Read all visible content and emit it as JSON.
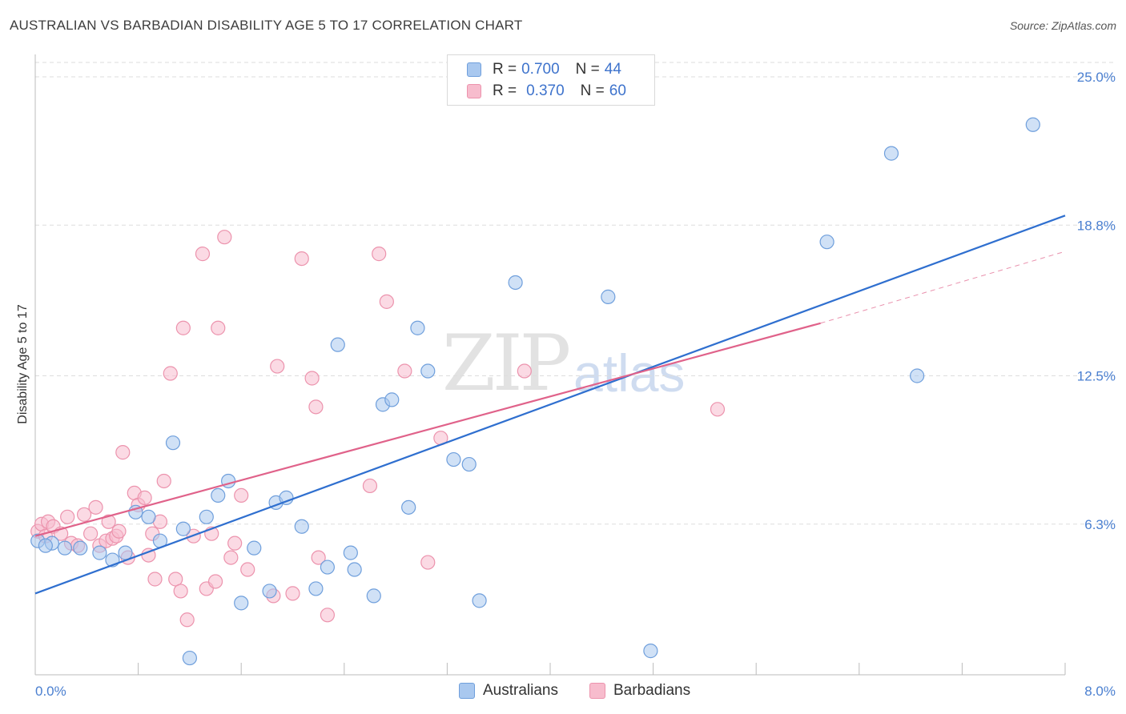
{
  "title": "AUSTRALIAN VS BARBADIAN DISABILITY AGE 5 TO 17 CORRELATION CHART",
  "source": "Source: ZipAtlas.com",
  "watermark": {
    "zip": "ZIP",
    "atlas": "atlas"
  },
  "legend": {
    "australians": {
      "r_label": "R =",
      "r_value": "0.700",
      "n_label": "N =",
      "n_value": "44"
    },
    "barbadians": {
      "r_label": "R =",
      "r_value": "0.370",
      "n_label": "N =",
      "n_value": "60"
    }
  },
  "bottom_legend": {
    "australians": "Australians",
    "barbadians": "Barbadians"
  },
  "colors": {
    "australians_fill": "#a9c8ef",
    "australians_stroke": "#6f9fdc",
    "australians_line": "#2f6fcf",
    "barbadians_fill": "#f7bccd",
    "barbadians_stroke": "#ec93ad",
    "barbadians_line": "#e0628a",
    "tick_text": "#4a7fd0",
    "grid": "#dddddd"
  },
  "chart_data": {
    "type": "scatter",
    "title": "AUSTRALIAN VS BARBADIAN DISABILITY AGE 5 TO 17 CORRELATION CHART",
    "xlabel": "",
    "ylabel": "Disability Age 5 to 17",
    "xlim": [
      0.0,
      8.0
    ],
    "ylim": [
      0.0,
      25.0
    ],
    "x_tick_labels": [
      "0.0%",
      "8.0%"
    ],
    "y_ticks": [
      6.3,
      12.5,
      18.8,
      25.0
    ],
    "y_tick_labels": [
      "6.3%",
      "12.5%",
      "18.8%",
      "25.0%"
    ],
    "grid": "horizontal dashed",
    "legend_position": "top-center",
    "series": [
      {
        "name": "Australians",
        "r": 0.7,
        "n": 44,
        "trend": {
          "x": [
            0.0,
            8.0
          ],
          "y": [
            3.4,
            19.2
          ]
        },
        "points": [
          [
            0.02,
            5.6
          ],
          [
            0.13,
            5.5
          ],
          [
            0.23,
            5.3
          ],
          [
            0.35,
            5.3
          ],
          [
            0.5,
            5.1
          ],
          [
            0.6,
            4.8
          ],
          [
            0.7,
            5.1
          ],
          [
            0.78,
            6.8
          ],
          [
            0.88,
            6.6
          ],
          [
            0.97,
            5.6
          ],
          [
            1.07,
            9.7
          ],
          [
            1.15,
            6.1
          ],
          [
            1.2,
            0.7
          ],
          [
            1.33,
            6.6
          ],
          [
            1.42,
            7.5
          ],
          [
            1.5,
            8.1
          ],
          [
            1.6,
            3.0
          ],
          [
            1.7,
            5.3
          ],
          [
            1.82,
            3.5
          ],
          [
            1.87,
            7.2
          ],
          [
            1.95,
            7.4
          ],
          [
            2.07,
            6.2
          ],
          [
            2.18,
            3.6
          ],
          [
            2.27,
            4.5
          ],
          [
            2.35,
            13.8
          ],
          [
            2.45,
            5.1
          ],
          [
            2.48,
            4.4
          ],
          [
            2.63,
            3.3
          ],
          [
            2.7,
            11.3
          ],
          [
            2.77,
            11.5
          ],
          [
            2.9,
            7.0
          ],
          [
            2.97,
            14.5
          ],
          [
            3.05,
            12.7
          ],
          [
            3.25,
            9.0
          ],
          [
            3.37,
            8.8
          ],
          [
            3.45,
            3.1
          ],
          [
            3.73,
            16.4
          ],
          [
            4.45,
            15.8
          ],
          [
            4.78,
            1.0
          ],
          [
            6.15,
            18.1
          ],
          [
            6.65,
            21.8
          ],
          [
            6.85,
            12.5
          ],
          [
            7.75,
            23.0
          ],
          [
            0.08,
            5.4
          ]
        ]
      },
      {
        "name": "Barbadians",
        "r": 0.37,
        "n": 60,
        "trend": {
          "x": [
            0.0,
            6.1
          ],
          "y": [
            5.8,
            14.7
          ]
        },
        "trend_dashed": {
          "x": [
            6.1,
            8.0
          ],
          "y": [
            14.7,
            17.7
          ]
        },
        "points": [
          [
            0.02,
            6.0
          ],
          [
            0.05,
            6.3
          ],
          [
            0.08,
            5.8
          ],
          [
            0.1,
            6.4
          ],
          [
            0.14,
            6.2
          ],
          [
            0.2,
            5.9
          ],
          [
            0.25,
            6.6
          ],
          [
            0.28,
            5.5
          ],
          [
            0.33,
            5.4
          ],
          [
            0.38,
            6.7
          ],
          [
            0.43,
            5.9
          ],
          [
            0.47,
            7.0
          ],
          [
            0.5,
            5.4
          ],
          [
            0.55,
            5.6
          ],
          [
            0.57,
            6.4
          ],
          [
            0.6,
            5.7
          ],
          [
            0.63,
            5.8
          ],
          [
            0.65,
            6.0
          ],
          [
            0.68,
            9.3
          ],
          [
            0.72,
            4.9
          ],
          [
            0.77,
            7.6
          ],
          [
            0.8,
            7.1
          ],
          [
            0.85,
            7.4
          ],
          [
            0.88,
            5.0
          ],
          [
            0.91,
            5.9
          ],
          [
            0.93,
            4.0
          ],
          [
            0.97,
            6.4
          ],
          [
            1.0,
            8.1
          ],
          [
            1.05,
            12.6
          ],
          [
            1.09,
            4.0
          ],
          [
            1.13,
            3.5
          ],
          [
            1.15,
            14.5
          ],
          [
            1.18,
            2.3
          ],
          [
            1.23,
            5.8
          ],
          [
            1.3,
            17.6
          ],
          [
            1.33,
            3.6
          ],
          [
            1.37,
            5.9
          ],
          [
            1.4,
            3.9
          ],
          [
            1.42,
            14.5
          ],
          [
            1.47,
            18.3
          ],
          [
            1.52,
            4.9
          ],
          [
            1.55,
            5.5
          ],
          [
            1.6,
            7.5
          ],
          [
            1.65,
            4.4
          ],
          [
            1.85,
            3.3
          ],
          [
            1.88,
            12.9
          ],
          [
            2.0,
            3.4
          ],
          [
            2.07,
            17.4
          ],
          [
            2.15,
            12.4
          ],
          [
            2.18,
            11.2
          ],
          [
            2.2,
            4.9
          ],
          [
            2.27,
            2.5
          ],
          [
            2.6,
            7.9
          ],
          [
            2.67,
            17.6
          ],
          [
            2.73,
            15.6
          ],
          [
            2.87,
            12.7
          ],
          [
            3.05,
            4.7
          ],
          [
            3.15,
            9.9
          ],
          [
            3.8,
            12.7
          ],
          [
            5.3,
            11.1
          ]
        ]
      }
    ]
  }
}
